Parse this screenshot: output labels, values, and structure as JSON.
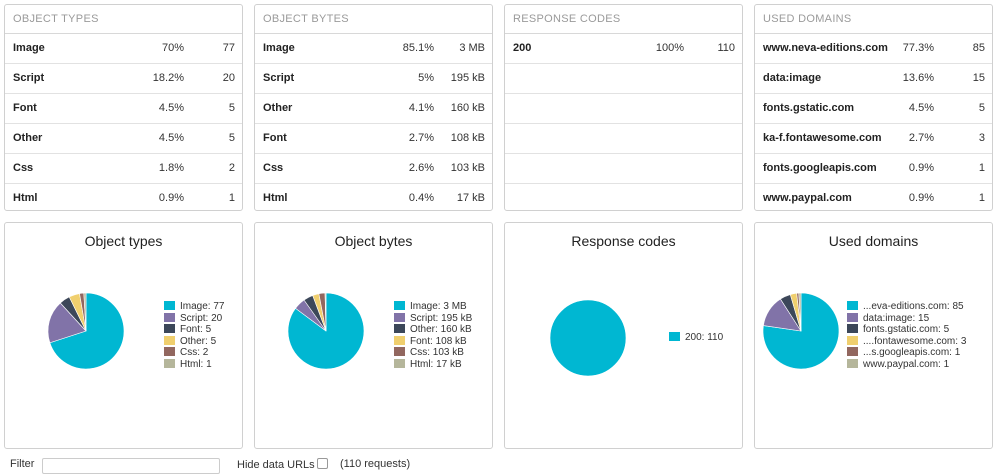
{
  "colors": [
    "#00b7d2",
    "#8173a8",
    "#3c4759",
    "#f0cf6e",
    "#92675f",
    "#b5b69b"
  ],
  "tables": [
    {
      "header": "OBJECT TYPES",
      "rows": [
        {
          "name": "Image",
          "pct": "70%",
          "count": "77"
        },
        {
          "name": "Script",
          "pct": "18.2%",
          "count": "20"
        },
        {
          "name": "Font",
          "pct": "4.5%",
          "count": "5"
        },
        {
          "name": "Other",
          "pct": "4.5%",
          "count": "5"
        },
        {
          "name": "Css",
          "pct": "1.8%",
          "count": "2"
        },
        {
          "name": "Html",
          "pct": "0.9%",
          "count": "1"
        }
      ]
    },
    {
      "header": "OBJECT BYTES",
      "rows": [
        {
          "name": "Image",
          "pct": "85.1%",
          "count": "3 MB"
        },
        {
          "name": "Script",
          "pct": "5%",
          "count": "195 kB"
        },
        {
          "name": "Other",
          "pct": "4.1%",
          "count": "160 kB"
        },
        {
          "name": "Font",
          "pct": "2.7%",
          "count": "108 kB"
        },
        {
          "name": "Css",
          "pct": "2.6%",
          "count": "103 kB"
        },
        {
          "name": "Html",
          "pct": "0.4%",
          "count": "17 kB"
        }
      ]
    },
    {
      "header": "RESPONSE CODES",
      "rows": [
        {
          "name": "200",
          "pct": "100%",
          "count": "110"
        },
        {
          "name": "",
          "pct": "",
          "count": ""
        },
        {
          "name": "",
          "pct": "",
          "count": ""
        },
        {
          "name": "",
          "pct": "",
          "count": ""
        },
        {
          "name": "",
          "pct": "",
          "count": ""
        },
        {
          "name": "",
          "pct": "",
          "count": ""
        }
      ]
    },
    {
      "header": "USED DOMAINS",
      "rows": [
        {
          "name": "www.neva-editions.com",
          "pct": "77.3%",
          "count": "85"
        },
        {
          "name": "data:image",
          "pct": "13.6%",
          "count": "15"
        },
        {
          "name": "fonts.gstatic.com",
          "pct": "4.5%",
          "count": "5"
        },
        {
          "name": "ka-f.fontawesome.com",
          "pct": "2.7%",
          "count": "3"
        },
        {
          "name": "fonts.googleapis.com",
          "pct": "0.9%",
          "count": "1"
        },
        {
          "name": "www.paypal.com",
          "pct": "0.9%",
          "count": "1"
        }
      ]
    }
  ],
  "chart_data": [
    {
      "type": "pie",
      "title": "Object types",
      "categories": [
        "Image",
        "Script",
        "Font",
        "Other",
        "Css",
        "Html"
      ],
      "values": [
        77,
        20,
        5,
        5,
        2,
        1
      ],
      "legend": [
        "Image: 77",
        "Script: 20",
        "Font: 5",
        "Other: 5",
        "Css: 2",
        "Html: 1"
      ]
    },
    {
      "type": "pie",
      "title": "Object bytes",
      "categories": [
        "Image",
        "Script",
        "Other",
        "Font",
        "Css",
        "Html"
      ],
      "values": [
        85.1,
        5,
        4.1,
        2.7,
        2.6,
        0.4
      ],
      "legend": [
        "Image: 3 MB",
        "Script: 195 kB",
        "Other: 160 kB",
        "Font: 108 kB",
        "Css: 103 kB",
        "Html: 17 kB"
      ]
    },
    {
      "type": "pie",
      "title": "Response codes",
      "categories": [
        "200"
      ],
      "values": [
        110
      ],
      "legend": [
        "200: 110"
      ]
    },
    {
      "type": "pie",
      "title": "Used domains",
      "categories": [
        "www.neva-editions.com",
        "data:image",
        "fonts.gstatic.com",
        "ka-f.fontawesome.com",
        "fonts.googleapis.com",
        "www.paypal.com"
      ],
      "values": [
        85,
        15,
        5,
        3,
        1,
        1
      ],
      "legend": [
        "...eva-editions.com: 85",
        "data:image: 15",
        "fonts.gstatic.com: 5",
        "....fontawesome.com: 3",
        "...s.googleapis.com: 1",
        "www.paypal.com: 1"
      ]
    }
  ],
  "filter": {
    "label": "Filter",
    "placeholder": "",
    "hide_label": "Hide data URLs",
    "requests": "(110 requests)"
  }
}
